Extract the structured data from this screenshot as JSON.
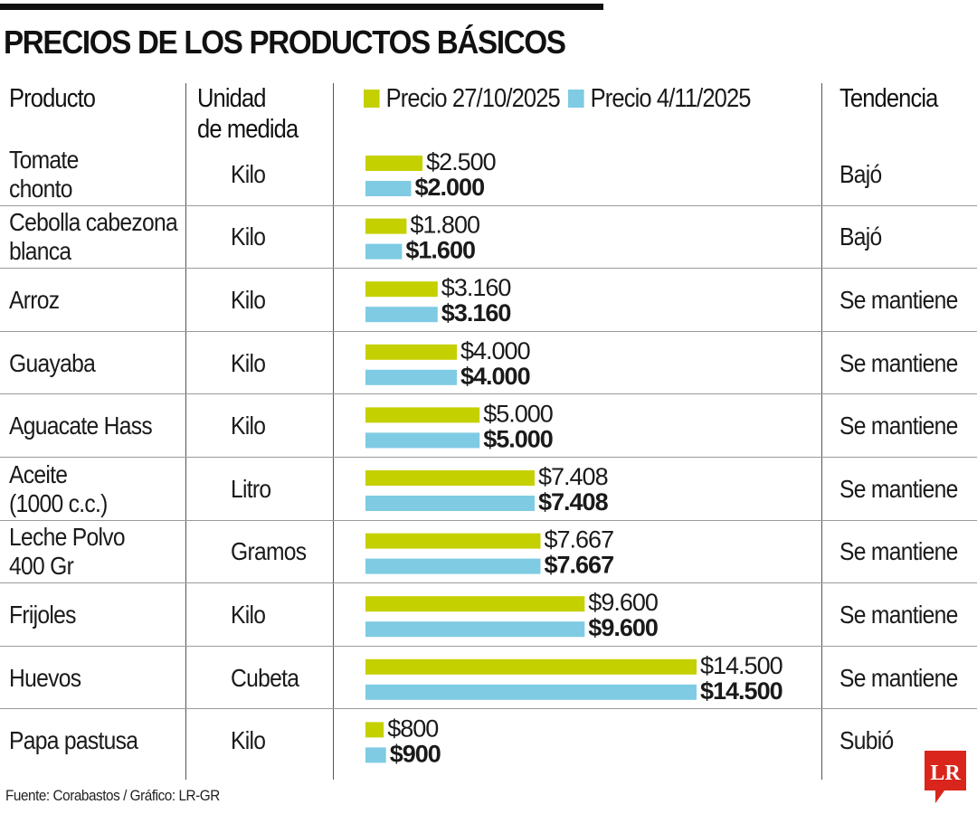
{
  "title": "PRECIOS DE LOS PRODUCTOS BÁSICOS",
  "headers": {
    "product": "Producto",
    "unit_line1": "Unidad",
    "unit_line2": "de medida",
    "trend": "Tendencia"
  },
  "colors": {
    "series1": "#c5d000",
    "series2": "#7ecbe3",
    "text": "#1a1a1a",
    "logo": "#d9251c"
  },
  "logo_text": "LR",
  "source": "Fuente: Corabastos / Gráfico: LR-GR",
  "chart_data": {
    "type": "bar",
    "orientation": "horizontal",
    "title": "PRECIOS DE LOS PRODUCTOS BÁSICOS",
    "categories": [
      "Tomate chonto",
      "Cebolla cabezona blanca",
      "Arroz",
      "Guayaba",
      "Aguacate Hass",
      "Aceite (1000 c.c.)",
      "Leche Polvo 400 Gr",
      "Frijoles",
      "Huevos",
      "Papa pastusa"
    ],
    "series": [
      {
        "name": "Precio 27/10/2025",
        "values": [
          2500,
          1800,
          3160,
          4000,
          5000,
          7408,
          7667,
          9600,
          14500,
          800
        ],
        "labels": [
          "$2.500",
          "$1.800",
          "$3.160",
          "$4.000",
          "$5.000",
          "$7.408",
          "$7.667",
          "$9.600",
          "$14.500",
          "$800"
        ]
      },
      {
        "name": "Precio 4/11/2025",
        "values": [
          2000,
          1600,
          3160,
          4000,
          5000,
          7408,
          7667,
          9600,
          14500,
          900
        ],
        "labels": [
          "$2.000",
          "$1.600",
          "$3.160",
          "$4.000",
          "$5.000",
          "$7.408",
          "$7.667",
          "$9.600",
          "$14.500",
          "$900"
        ]
      }
    ],
    "xlim": [
      0,
      14500
    ],
    "legend": "top",
    "grid": false
  },
  "rows": [
    {
      "product": [
        "Tomate",
        "chonto"
      ],
      "unit": "Kilo",
      "trend": "Bajó"
    },
    {
      "product": [
        "Cebolla cabezona",
        "blanca"
      ],
      "unit": "Kilo",
      "trend": "Bajó"
    },
    {
      "product": [
        "Arroz"
      ],
      "unit": "Kilo",
      "trend": "Se mantiene"
    },
    {
      "product": [
        "Guayaba"
      ],
      "unit": "Kilo",
      "trend": "Se mantiene"
    },
    {
      "product": [
        "Aguacate Hass"
      ],
      "unit": "Kilo",
      "trend": "Se mantiene"
    },
    {
      "product": [
        "Aceite",
        "(1000 c.c.)"
      ],
      "unit": "Litro",
      "trend": "Se mantiene"
    },
    {
      "product": [
        "Leche Polvo",
        "400 Gr"
      ],
      "unit": "Gramos",
      "trend": "Se mantiene"
    },
    {
      "product": [
        "Frijoles"
      ],
      "unit": "Kilo",
      "trend": "Se mantiene"
    },
    {
      "product": [
        "Huevos"
      ],
      "unit": "Cubeta",
      "trend": "Se mantiene"
    },
    {
      "product": [
        "Papa pastusa"
      ],
      "unit": "Kilo",
      "trend": "Subió"
    }
  ]
}
